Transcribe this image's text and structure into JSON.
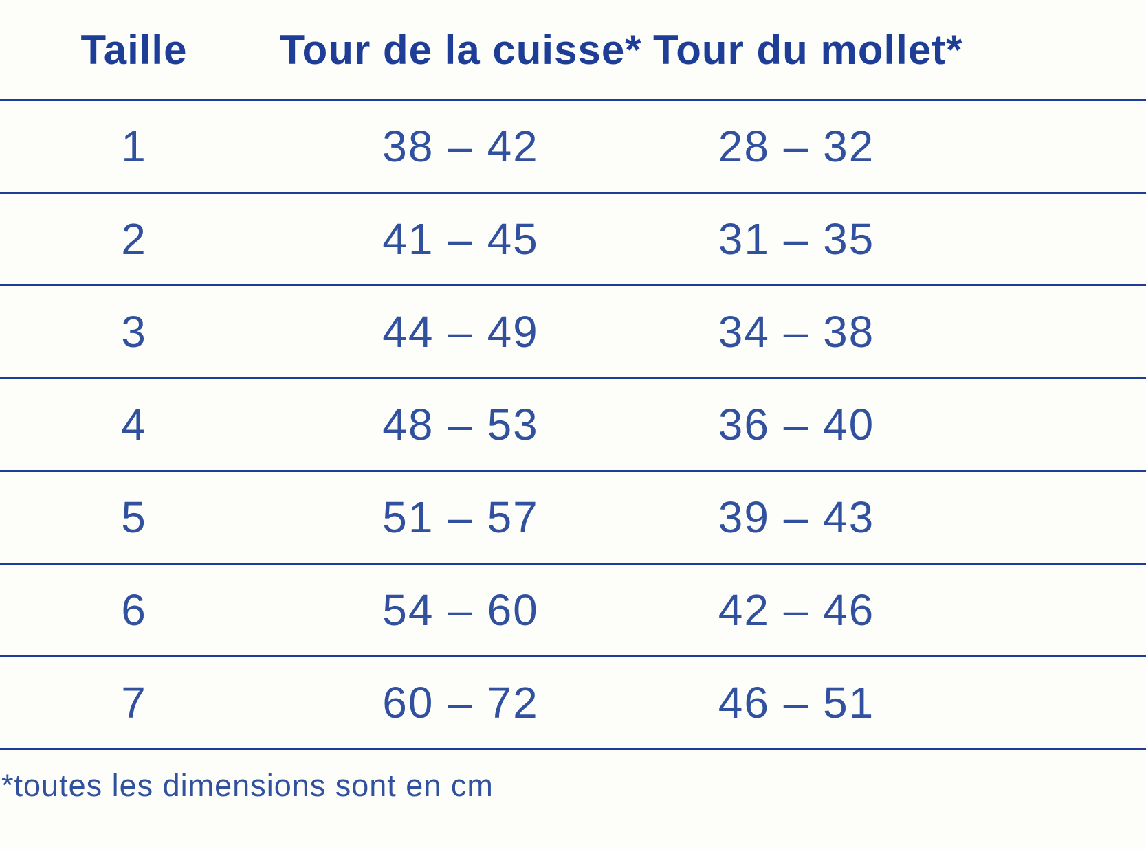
{
  "colors": {
    "header_text": "#1e3d96",
    "body_text": "#31519f",
    "rule": "#1e3d96",
    "background": "#fdfdf9"
  },
  "table": {
    "columns": [
      {
        "label": "Taille"
      },
      {
        "label": "Tour de la cuisse*"
      },
      {
        "label": "Tour du mollet*"
      }
    ],
    "rows": [
      {
        "taille": "1",
        "cuisse": "38 – 42",
        "mollet": "28 – 32"
      },
      {
        "taille": "2",
        "cuisse": "41 – 45",
        "mollet": "31 – 35"
      },
      {
        "taille": "3",
        "cuisse": "44 – 49",
        "mollet": "34 – 38"
      },
      {
        "taille": "4",
        "cuisse": "48 – 53",
        "mollet": "36 – 40"
      },
      {
        "taille": "5",
        "cuisse": "51 – 57",
        "mollet": "39 – 43"
      },
      {
        "taille": "6",
        "cuisse": "54 – 60",
        "mollet": "42 – 46"
      },
      {
        "taille": "7",
        "cuisse": "60 – 72",
        "mollet": "46 – 51"
      }
    ],
    "footnote": "*toutes les dimensions sont en cm"
  },
  "chart_data": {
    "type": "table",
    "title": "",
    "columns": [
      "Taille",
      "Tour de la cuisse*",
      "Tour du mollet*"
    ],
    "rows": [
      [
        "1",
        "38 – 42",
        "28 – 32"
      ],
      [
        "2",
        "41 – 45",
        "31 – 35"
      ],
      [
        "3",
        "44 – 49",
        "34 – 38"
      ],
      [
        "4",
        "48 – 53",
        "36 – 40"
      ],
      [
        "5",
        "51 – 57",
        "39 – 43"
      ],
      [
        "6",
        "54 – 60",
        "42 – 46"
      ],
      [
        "7",
        "60 – 72",
        "46 – 51"
      ]
    ],
    "units": "cm",
    "annotations": [
      "*toutes les dimensions sont en cm"
    ]
  }
}
